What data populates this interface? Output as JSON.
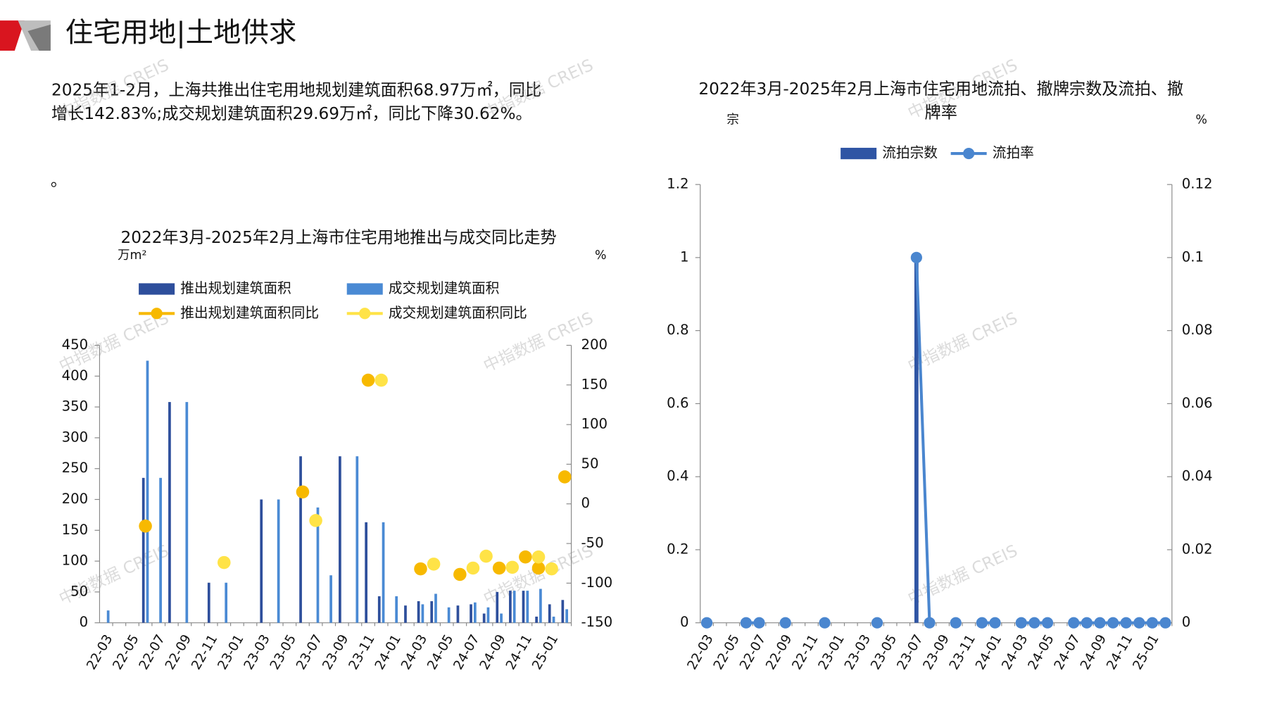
{
  "header": {
    "title": "住宅用地|土地供求"
  },
  "paragraph": {
    "lines": [
      "2025年1-2月，上海共推出住宅用地规划建筑面积68.97万㎡，同比",
      "增长142.83%;成交规划建筑面积29.69万㎡，同比下降30.62%。"
    ],
    "note": "。"
  },
  "watermark": "中指数据 CREIS",
  "chart_data": [
    {
      "type": "combo",
      "title": "2022年3月-2025年2月上海市住宅用地推出与成交同比走势",
      "y_unit": "万m²",
      "y2_unit": "%",
      "categories": [
        "22-03",
        null,
        "22-05",
        null,
        "22-07",
        null,
        "22-09",
        null,
        "22-11",
        null,
        "23-01",
        null,
        "23-03",
        null,
        "23-05",
        null,
        "23-07",
        null,
        "23-09",
        null,
        "23-11",
        null,
        "24-01",
        null,
        "24-03",
        null,
        "24-05",
        null,
        "24-07",
        null,
        "24-09",
        null,
        "24-11",
        null,
        "25-01",
        null
      ],
      "ylim": [
        0,
        450
      ],
      "yticks": [
        0,
        50,
        100,
        150,
        200,
        250,
        300,
        350,
        400,
        450
      ],
      "y2lim": [
        -150,
        200
      ],
      "y2ticks": [
        -150,
        -100,
        -50,
        0,
        50,
        100,
        150,
        200
      ],
      "series": [
        {
          "name": "推出规划建筑面积",
          "kind": "bar",
          "color": "#2e4f9c",
          "values": [
            0,
            0,
            0,
            235,
            0,
            358,
            0,
            0,
            65,
            0,
            0,
            0,
            200,
            0,
            0,
            270,
            0,
            0,
            270,
            0,
            163,
            43,
            0,
            28,
            35,
            35,
            0,
            28,
            30,
            15,
            50,
            52,
            52,
            10,
            30,
            37
          ]
        },
        {
          "name": "成交规划建筑面积",
          "kind": "bar",
          "color": "#4a8ad4",
          "values": [
            20,
            0,
            0,
            425,
            235,
            0,
            358,
            0,
            0,
            65,
            0,
            0,
            0,
            200,
            0,
            0,
            187,
            77,
            0,
            270,
            0,
            163,
            43,
            0,
            30,
            47,
            25,
            0,
            33,
            25,
            15,
            52,
            52,
            55,
            10,
            22
          ]
        },
        {
          "name": "推出规划建筑面积同比",
          "kind": "markers",
          "axis": "y2",
          "color": "#f7b900",
          "values": [
            null,
            null,
            null,
            -28,
            null,
            null,
            null,
            null,
            null,
            null,
            null,
            null,
            null,
            null,
            null,
            15,
            null,
            null,
            null,
            null,
            156,
            null,
            null,
            null,
            -82,
            null,
            null,
            -89,
            null,
            null,
            -81,
            null,
            -67,
            -81,
            null,
            34
          ]
        },
        {
          "name": "成交规划建筑面积同比",
          "kind": "markers",
          "axis": "y2",
          "color": "#ffe347",
          "values": [
            null,
            null,
            null,
            null,
            null,
            null,
            null,
            null,
            null,
            -74,
            null,
            null,
            null,
            null,
            null,
            null,
            -21,
            null,
            null,
            null,
            null,
            156,
            null,
            null,
            null,
            -76,
            null,
            null,
            -81,
            -66,
            null,
            -80,
            null,
            -67,
            -82,
            null
          ]
        }
      ]
    },
    {
      "type": "combo",
      "title": [
        "2022年3月-2025年2月上海市住宅用地流拍、撤牌宗数及流拍、撤",
        "牌率"
      ],
      "y_unit": "宗",
      "y2_unit": "%",
      "categories": [
        "22-03",
        null,
        "22-05",
        null,
        "22-07",
        null,
        "22-09",
        null,
        "22-11",
        null,
        "23-01",
        null,
        "23-03",
        null,
        "23-05",
        null,
        "23-07",
        null,
        "23-09",
        null,
        "23-11",
        null,
        "24-01",
        null,
        "24-03",
        null,
        "24-05",
        null,
        "24-07",
        null,
        "24-09",
        null,
        "24-11",
        null,
        "25-01",
        null
      ],
      "ylim": [
        0,
        1.2
      ],
      "yticks": [
        0,
        0.2,
        0.4,
        0.6,
        0.8,
        1,
        1.2
      ],
      "y2lim": [
        0,
        0.12
      ],
      "y2ticks": [
        0,
        0.02,
        0.04,
        0.06,
        0.08,
        0.1,
        0.12
      ],
      "series": [
        {
          "name": "流拍宗数",
          "kind": "bar",
          "color": "#2f55a4",
          "values": [
            0,
            0,
            0,
            0,
            0,
            0,
            0,
            0,
            0,
            0,
            0,
            0,
            0,
            0,
            0,
            0,
            1,
            0,
            0,
            0,
            0,
            0,
            0,
            0,
            0,
            0,
            0,
            0,
            0,
            0,
            0,
            0,
            0,
            0,
            0,
            0
          ]
        },
        {
          "name": "流拍率",
          "kind": "lines+markers",
          "axis": "y2",
          "color": "#4a86cf",
          "values": [
            0,
            null,
            null,
            0,
            0,
            null,
            0,
            null,
            null,
            0,
            null,
            null,
            null,
            0,
            null,
            null,
            0.1,
            0,
            null,
            0,
            null,
            0,
            0,
            null,
            0,
            0,
            0,
            null,
            0,
            0,
            0,
            0,
            0,
            0,
            0,
            0
          ]
        }
      ]
    }
  ]
}
